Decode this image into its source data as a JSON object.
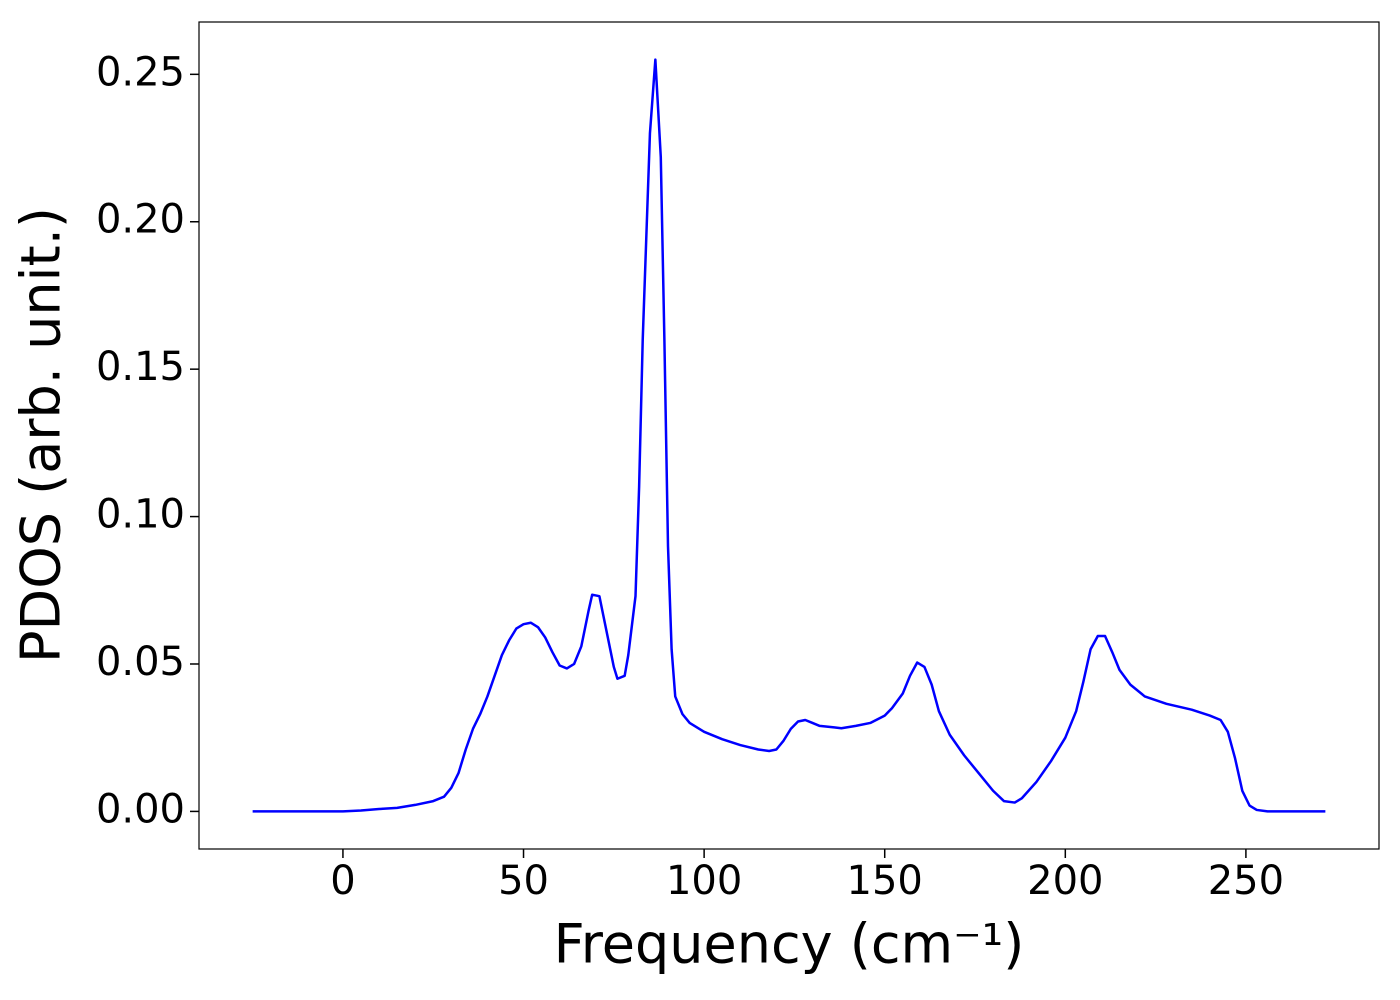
{
  "chart_data": {
    "type": "line",
    "xlabel": "Frequency (cm⁻¹)",
    "ylabel": "PDOS (arb. unit.)",
    "color": "#0000ff",
    "x": [
      -25,
      0,
      5,
      10,
      15,
      20,
      25,
      28,
      30,
      32,
      34,
      36,
      38,
      40,
      42,
      44,
      46,
      48,
      50,
      52,
      54,
      56,
      58,
      60,
      62,
      64,
      66,
      68,
      69,
      71,
      72,
      74,
      75,
      76,
      78,
      79,
      81,
      82,
      83,
      85,
      86.5,
      88,
      89,
      90,
      91,
      92,
      94,
      96,
      100,
      105,
      110,
      115,
      118,
      120,
      122,
      124,
      126,
      128,
      130,
      132,
      136,
      138,
      142,
      146,
      150,
      152,
      155,
      157,
      159,
      161,
      163,
      165,
      168,
      172,
      176,
      180,
      183,
      186,
      188,
      192,
      196,
      200,
      203,
      205,
      207,
      209,
      211,
      213,
      215,
      218,
      222,
      228,
      235,
      240,
      243,
      245,
      247,
      249,
      251,
      253,
      256,
      272
    ],
    "values": [
      0,
      0,
      0.0003,
      0.0008,
      0.0012,
      0.0022,
      0.0035,
      0.005,
      0.008,
      0.013,
      0.021,
      0.028,
      0.033,
      0.039,
      0.046,
      0.053,
      0.058,
      0.062,
      0.0635,
      0.064,
      0.0625,
      0.059,
      0.054,
      0.0495,
      0.0485,
      0.05,
      0.056,
      0.068,
      0.0735,
      0.073,
      0.067,
      0.055,
      0.049,
      0.045,
      0.046,
      0.053,
      0.073,
      0.11,
      0.16,
      0.23,
      0.255,
      0.222,
      0.16,
      0.09,
      0.055,
      0.039,
      0.033,
      0.03,
      0.027,
      0.0245,
      0.0225,
      0.021,
      0.0205,
      0.021,
      0.024,
      0.028,
      0.0305,
      0.031,
      0.03,
      0.029,
      0.0285,
      0.0282,
      0.029,
      0.03,
      0.0325,
      0.035,
      0.04,
      0.046,
      0.0505,
      0.049,
      0.043,
      0.034,
      0.026,
      0.019,
      0.013,
      0.007,
      0.0035,
      0.003,
      0.0045,
      0.01,
      0.017,
      0.025,
      0.034,
      0.044,
      0.055,
      0.0595,
      0.0595,
      0.054,
      0.048,
      0.043,
      0.039,
      0.0365,
      0.0345,
      0.0325,
      0.031,
      0.027,
      0.018,
      0.007,
      0.002,
      0.0005,
      0,
      0
    ],
    "xlim": [
      -39.85,
      286.85
    ],
    "ylim": [
      -0.01275,
      0.26775
    ],
    "xticks": [
      0,
      50,
      100,
      150,
      200,
      250
    ],
    "yticks": [
      {
        "value": 0,
        "label": "0.00"
      },
      {
        "value": 0.05,
        "label": "0.05"
      },
      {
        "value": 0.1,
        "label": "0.10"
      },
      {
        "value": 0.15,
        "label": "0.15"
      },
      {
        "value": 0.2,
        "label": "0.20"
      },
      {
        "value": 0.25,
        "label": "0.25"
      }
    ]
  }
}
